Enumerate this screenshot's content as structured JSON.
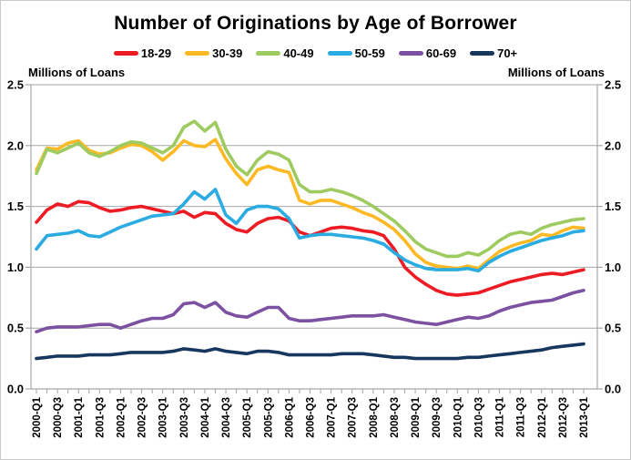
{
  "chart_data": {
    "type": "line",
    "title": "Number of Originations by Age of Borrower",
    "ylabel_left": "Millions of Loans",
    "ylabel_right": "Millions of Loans",
    "ylim": [
      0,
      2.5
    ],
    "ytick_labels": [
      "0.0",
      "0.5",
      "1.0",
      "1.5",
      "2.0",
      "2.5"
    ],
    "grid": "horizontal",
    "legend_position": "top",
    "x_label_every": 2,
    "x": [
      "2000-Q1",
      "2000-Q2",
      "2000-Q3",
      "2000-Q4",
      "2001-Q1",
      "2001-Q2",
      "2001-Q3",
      "2001-Q4",
      "2002-Q1",
      "2002-Q2",
      "2002-Q3",
      "2002-Q4",
      "2003-Q1",
      "2003-Q2",
      "2003-Q3",
      "2003-Q4",
      "2004-Q1",
      "2004-Q2",
      "2004-Q3",
      "2004-Q4",
      "2005-Q1",
      "2005-Q2",
      "2005-Q3",
      "2005-Q4",
      "2006-Q1",
      "2006-Q2",
      "2006-Q3",
      "2006-Q4",
      "2007-Q1",
      "2007-Q2",
      "2007-Q3",
      "2007-Q4",
      "2008-Q1",
      "2008-Q2",
      "2008-Q3",
      "2008-Q4",
      "2009-Q1",
      "2009-Q2",
      "2009-Q3",
      "2009-Q4",
      "2010-Q1",
      "2010-Q2",
      "2010-Q3",
      "2010-Q4",
      "2011-Q1",
      "2011-Q2",
      "2011-Q3",
      "2011-Q4",
      "2012-Q1",
      "2012-Q2",
      "2012-Q3",
      "2012-Q4",
      "2013-Q1"
    ],
    "series": [
      {
        "name": "18-29",
        "color": "#ed1c24",
        "values": [
          1.37,
          1.47,
          1.52,
          1.5,
          1.54,
          1.53,
          1.49,
          1.46,
          1.47,
          1.49,
          1.5,
          1.48,
          1.46,
          1.44,
          1.46,
          1.41,
          1.45,
          1.44,
          1.36,
          1.31,
          1.29,
          1.36,
          1.4,
          1.41,
          1.38,
          1.29,
          1.26,
          1.29,
          1.32,
          1.33,
          1.32,
          1.3,
          1.29,
          1.26,
          1.15,
          1.0,
          0.92,
          0.86,
          0.81,
          0.78,
          0.77,
          0.78,
          0.79,
          0.82,
          0.85,
          0.88,
          0.9,
          0.92,
          0.94,
          0.95,
          0.94,
          0.96,
          0.98
        ]
      },
      {
        "name": "30-39",
        "color": "#fdb924",
        "values": [
          1.8,
          1.98,
          1.97,
          2.02,
          2.04,
          1.96,
          1.93,
          1.94,
          1.98,
          2.01,
          2.0,
          1.95,
          1.88,
          1.95,
          2.04,
          2.0,
          1.99,
          2.05,
          1.89,
          1.77,
          1.68,
          1.8,
          1.83,
          1.8,
          1.78,
          1.55,
          1.52,
          1.55,
          1.55,
          1.52,
          1.49,
          1.45,
          1.42,
          1.37,
          1.31,
          1.22,
          1.11,
          1.04,
          1.01,
          1.0,
          0.99,
          1.01,
          0.99,
          1.06,
          1.13,
          1.17,
          1.2,
          1.22,
          1.27,
          1.26,
          1.3,
          1.33,
          1.32
        ]
      },
      {
        "name": "40-49",
        "color": "#9ecb60",
        "values": [
          1.77,
          1.97,
          1.94,
          1.98,
          2.02,
          1.94,
          1.91,
          1.95,
          2.0,
          2.03,
          2.02,
          1.98,
          1.94,
          2.0,
          2.15,
          2.2,
          2.12,
          2.19,
          1.97,
          1.83,
          1.76,
          1.88,
          1.95,
          1.93,
          1.88,
          1.68,
          1.62,
          1.62,
          1.64,
          1.62,
          1.59,
          1.55,
          1.5,
          1.44,
          1.38,
          1.3,
          1.21,
          1.15,
          1.12,
          1.09,
          1.09,
          1.12,
          1.1,
          1.15,
          1.22,
          1.27,
          1.29,
          1.27,
          1.32,
          1.35,
          1.37,
          1.39,
          1.4
        ]
      },
      {
        "name": "50-59",
        "color": "#2aabe2",
        "values": [
          1.15,
          1.26,
          1.27,
          1.28,
          1.3,
          1.26,
          1.25,
          1.29,
          1.33,
          1.36,
          1.39,
          1.42,
          1.43,
          1.44,
          1.52,
          1.62,
          1.56,
          1.64,
          1.43,
          1.36,
          1.47,
          1.5,
          1.5,
          1.48,
          1.4,
          1.24,
          1.26,
          1.27,
          1.27,
          1.26,
          1.25,
          1.24,
          1.22,
          1.19,
          1.12,
          1.06,
          1.02,
          0.99,
          0.98,
          0.98,
          0.98,
          0.99,
          0.97,
          1.04,
          1.09,
          1.13,
          1.16,
          1.19,
          1.22,
          1.24,
          1.26,
          1.29,
          1.3
        ]
      },
      {
        "name": "60-69",
        "color": "#7c51a1",
        "values": [
          0.47,
          0.5,
          0.51,
          0.51,
          0.51,
          0.52,
          0.53,
          0.53,
          0.5,
          0.53,
          0.56,
          0.58,
          0.58,
          0.61,
          0.7,
          0.71,
          0.67,
          0.71,
          0.63,
          0.6,
          0.59,
          0.63,
          0.67,
          0.67,
          0.58,
          0.56,
          0.56,
          0.57,
          0.58,
          0.59,
          0.6,
          0.6,
          0.6,
          0.61,
          0.59,
          0.57,
          0.55,
          0.54,
          0.53,
          0.55,
          0.57,
          0.59,
          0.58,
          0.6,
          0.64,
          0.67,
          0.69,
          0.71,
          0.72,
          0.73,
          0.76,
          0.79,
          0.81
        ]
      },
      {
        "name": "70+",
        "color": "#17375e",
        "values": [
          0.25,
          0.26,
          0.27,
          0.27,
          0.27,
          0.28,
          0.28,
          0.28,
          0.29,
          0.3,
          0.3,
          0.3,
          0.3,
          0.31,
          0.33,
          0.32,
          0.31,
          0.33,
          0.31,
          0.3,
          0.29,
          0.31,
          0.31,
          0.3,
          0.28,
          0.28,
          0.28,
          0.28,
          0.28,
          0.29,
          0.29,
          0.29,
          0.28,
          0.27,
          0.26,
          0.26,
          0.25,
          0.25,
          0.25,
          0.25,
          0.25,
          0.26,
          0.26,
          0.27,
          0.28,
          0.29,
          0.3,
          0.31,
          0.32,
          0.34,
          0.35,
          0.36,
          0.37
        ]
      }
    ]
  }
}
